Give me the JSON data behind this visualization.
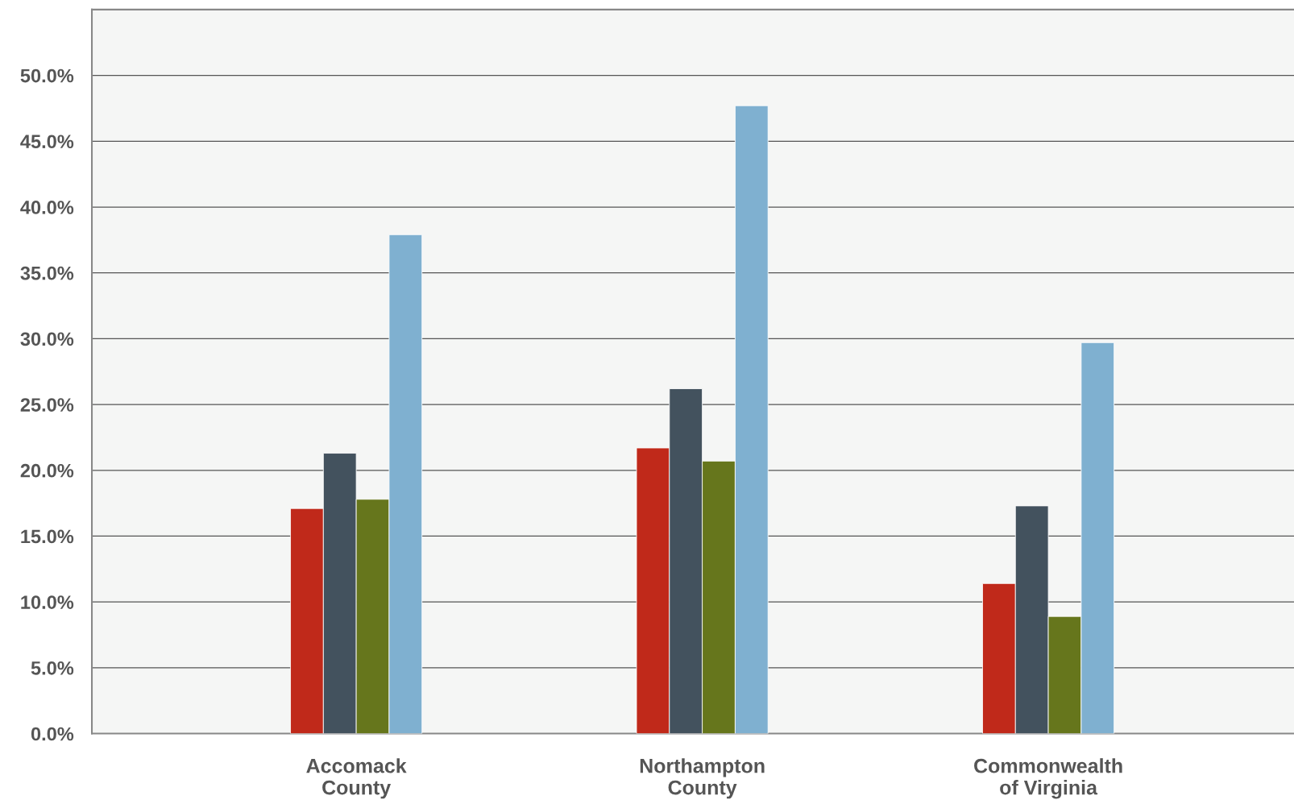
{
  "chart_data": {
    "type": "bar",
    "categories": [
      "Accomack\nCounty",
      "Northampton\nCounty",
      "Commonwealth\nof Virginia"
    ],
    "series": [
      {
        "color": "#c0291a",
        "values": [
          17.1,
          21.7,
          11.4
        ]
      },
      {
        "color": "#43525e",
        "values": [
          21.3,
          26.2,
          17.3
        ]
      },
      {
        "color": "#66761c",
        "values": [
          17.8,
          20.7,
          8.9
        ]
      },
      {
        "color": "#7fb0d0",
        "values": [
          37.9,
          47.7,
          29.7
        ]
      }
    ],
    "ylim": [
      0,
      55
    ],
    "yticks": [
      {
        "value": 0,
        "label": "0.0%"
      },
      {
        "value": 5,
        "label": "5.0%"
      },
      {
        "value": 10,
        "label": "10.0%"
      },
      {
        "value": 15,
        "label": "15.0%"
      },
      {
        "value": 20,
        "label": "20.0%"
      },
      {
        "value": 25,
        "label": "25.0%"
      },
      {
        "value": 30,
        "label": "30.0%"
      },
      {
        "value": 35,
        "label": "35.0%"
      },
      {
        "value": 40,
        "label": "40.0%"
      },
      {
        "value": 45,
        "label": "45.0%"
      },
      {
        "value": 50,
        "label": "50.0%"
      }
    ],
    "grid": "y"
  }
}
